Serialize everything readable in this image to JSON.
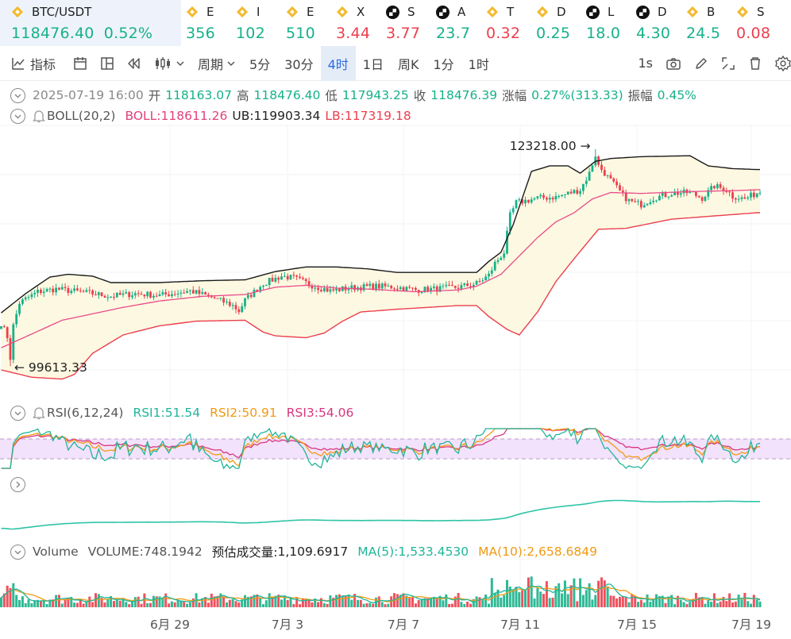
{
  "ticker": {
    "main": {
      "symbol": "BTC/USDT",
      "price": "118476.40",
      "change": "0.52%"
    },
    "items": [
      {
        "icon": "binance-coin-icon",
        "label": "E",
        "value": "356",
        "dir": "up"
      },
      {
        "icon": "binance-coin-icon",
        "label": "I",
        "value": "102",
        "dir": "up"
      },
      {
        "icon": "binance-coin-icon",
        "label": "E",
        "value": "510",
        "dir": "up"
      },
      {
        "icon": "binance-coin-icon",
        "label": "X",
        "value": "3.44",
        "dir": "dn"
      },
      {
        "icon": "okx-icon",
        "label": "S",
        "value": "3.77",
        "dir": "dn"
      },
      {
        "icon": "okx-icon",
        "label": "A",
        "value": "23.7",
        "dir": "up"
      },
      {
        "icon": "binance-coin-icon",
        "label": "T",
        "value": "0.32",
        "dir": "dn"
      },
      {
        "icon": "binance-coin-icon",
        "label": "D",
        "value": "0.25",
        "dir": "up"
      },
      {
        "icon": "okx-icon",
        "label": "L",
        "value": "18.0",
        "dir": "up"
      },
      {
        "icon": "okx-icon",
        "label": "D",
        "value": "4.30",
        "dir": "up"
      },
      {
        "icon": "binance-coin-icon",
        "label": "B",
        "value": "24.5",
        "dir": "up"
      },
      {
        "icon": "binance-coin-icon",
        "label": "S",
        "value": "0.08",
        "dir": "dn"
      }
    ]
  },
  "toolbar": {
    "indicator_label": "指标",
    "period_label": "周期",
    "intervals": [
      "5分",
      "30分",
      "4时",
      "1日",
      "周K",
      "1分",
      "1时"
    ],
    "active_interval": "4时",
    "speed_label": "1s"
  },
  "ohlc": {
    "datetime": "2025-07-19 16:00",
    "open_label": "开",
    "open": "118163.07",
    "high_label": "高",
    "high": "118476.40",
    "low_label": "低",
    "low": "117943.25",
    "close_label": "收",
    "close": "118476.39",
    "change_label": "涨幅",
    "change": "0.27%(313.33)",
    "amplitude_label": "振幅",
    "amplitude": "0.45%"
  },
  "boll": {
    "name": "BOLL(20,2)",
    "mid_label": "BOLL:",
    "mid": "118611.26",
    "ub_label": "UB:",
    "ub": "119903.34",
    "lb_label": "LB:",
    "lb": "117319.18"
  },
  "rsi": {
    "name": "RSI(6,12,24)",
    "rsi1_label": "RSI1:",
    "rsi1": "51.54",
    "rsi2_label": "RSI2:",
    "rsi2": "50.91",
    "rsi3_label": "RSI3:",
    "rsi3": "54.06"
  },
  "volume": {
    "label": "Volume",
    "vol_label": "VOLUME:",
    "vol": "748.1942",
    "est_label": "预估成交量:",
    "est": "1,109.6917",
    "ma5_label": "MA(5):",
    "ma5": "1,533.4530",
    "ma10_label": "MA(10):",
    "ma10": "2,658.6849"
  },
  "colors": {
    "up": "#17b18a",
    "down": "#ec3f4d",
    "upper_band": "#1a1a1a",
    "middle_band": "#e84b8a",
    "lower_band": "#ea3f4e",
    "band_fill": "#fdf8e1",
    "rsi1": "#20b59a",
    "rsi2": "#f19a13",
    "rsi3": "#d8377f",
    "rsi_zone": "#f3e2fb",
    "secondary_line": "#2ec4a6",
    "ma5": "#20b59a",
    "ma10": "#f19a13"
  },
  "chart_data": {
    "type": "candlestick",
    "x_ticks": [
      "6月 29",
      "7月 3",
      "7月 7",
      "7月 11",
      "7月 15",
      "7月 19"
    ],
    "annotations": {
      "high": "123218.00",
      "low": "99613.33"
    },
    "y_range": [
      96000,
      125800
    ],
    "close_anchors": [
      [
        0,
        104300
      ],
      [
        2,
        102800
      ],
      [
        3,
        100500
      ],
      [
        4,
        104000
      ],
      [
        6,
        106500
      ],
      [
        12,
        107700
      ],
      [
        18,
        108000
      ],
      [
        28,
        107600
      ],
      [
        36,
        107200
      ],
      [
        44,
        107500
      ],
      [
        52,
        107300
      ],
      [
        62,
        107800
      ],
      [
        70,
        107000
      ],
      [
        76,
        106200
      ],
      [
        78,
        105600
      ],
      [
        80,
        106800
      ],
      [
        86,
        108600
      ],
      [
        92,
        109400
      ],
      [
        96,
        109200
      ],
      [
        102,
        108400
      ],
      [
        108,
        107800
      ],
      [
        114,
        108100
      ],
      [
        122,
        108300
      ],
      [
        130,
        108200
      ],
      [
        136,
        107900
      ],
      [
        142,
        108000
      ],
      [
        150,
        108200
      ],
      [
        156,
        108600
      ],
      [
        160,
        109500
      ],
      [
        162,
        110800
      ],
      [
        165,
        112000
      ],
      [
        167,
        116000
      ],
      [
        169,
        117400
      ],
      [
        172,
        117600
      ],
      [
        176,
        117900
      ],
      [
        182,
        118000
      ],
      [
        186,
        118400
      ],
      [
        190,
        118800
      ],
      [
        193,
        120600
      ],
      [
        195,
        122600
      ],
      [
        196,
        121400
      ],
      [
        200,
        119800
      ],
      [
        204,
        118200
      ],
      [
        206,
        117600
      ],
      [
        210,
        117200
      ],
      [
        214,
        117900
      ],
      [
        220,
        118400
      ],
      [
        226,
        118500
      ],
      [
        230,
        117900
      ],
      [
        234,
        119200
      ],
      [
        238,
        118800
      ],
      [
        240,
        118100
      ],
      [
        244,
        117800
      ],
      [
        248,
        118476
      ]
    ],
    "upper_anchors": [
      [
        0,
        105400
      ],
      [
        8,
        107500
      ],
      [
        16,
        109300
      ],
      [
        22,
        109600
      ],
      [
        30,
        109400
      ],
      [
        36,
        108700
      ],
      [
        52,
        108700
      ],
      [
        66,
        108900
      ],
      [
        80,
        109000
      ],
      [
        90,
        109900
      ],
      [
        100,
        110400
      ],
      [
        110,
        110400
      ],
      [
        120,
        110200
      ],
      [
        130,
        109800
      ],
      [
        146,
        109800
      ],
      [
        156,
        109800
      ],
      [
        160,
        111000
      ],
      [
        164,
        112000
      ],
      [
        168,
        115000
      ],
      [
        174,
        120800
      ],
      [
        180,
        121400
      ],
      [
        186,
        121400
      ],
      [
        190,
        120600
      ],
      [
        195,
        121900
      ],
      [
        200,
        122200
      ],
      [
        210,
        122400
      ],
      [
        226,
        122500
      ],
      [
        232,
        121400
      ],
      [
        240,
        121100
      ],
      [
        248,
        121000
      ]
    ],
    "middle_anchors": [
      [
        0,
        101600
      ],
      [
        10,
        103100
      ],
      [
        20,
        104600
      ],
      [
        30,
        105300
      ],
      [
        40,
        106000
      ],
      [
        52,
        106700
      ],
      [
        66,
        107200
      ],
      [
        80,
        107400
      ],
      [
        90,
        108200
      ],
      [
        100,
        108400
      ],
      [
        110,
        108100
      ],
      [
        120,
        108000
      ],
      [
        136,
        107700
      ],
      [
        150,
        107900
      ],
      [
        156,
        108300
      ],
      [
        164,
        109600
      ],
      [
        170,
        111600
      ],
      [
        176,
        113600
      ],
      [
        182,
        115300
      ],
      [
        188,
        116300
      ],
      [
        194,
        117800
      ],
      [
        200,
        118500
      ],
      [
        210,
        118400
      ],
      [
        226,
        118600
      ],
      [
        240,
        118700
      ],
      [
        248,
        118800
      ]
    ],
    "lower_anchors": [
      [
        0,
        99200
      ],
      [
        10,
        98400
      ],
      [
        20,
        98200
      ],
      [
        24,
        98700
      ],
      [
        30,
        101000
      ],
      [
        40,
        103000
      ],
      [
        52,
        104000
      ],
      [
        64,
        104500
      ],
      [
        80,
        104600
      ],
      [
        86,
        103300
      ],
      [
        90,
        102900
      ],
      [
        100,
        102700
      ],
      [
        106,
        103200
      ],
      [
        112,
        104500
      ],
      [
        118,
        105500
      ],
      [
        130,
        105800
      ],
      [
        150,
        106200
      ],
      [
        156,
        106200
      ],
      [
        160,
        105000
      ],
      [
        166,
        103600
      ],
      [
        170,
        103000
      ],
      [
        176,
        105500
      ],
      [
        182,
        108800
      ],
      [
        188,
        111300
      ],
      [
        196,
        114500
      ],
      [
        205,
        114600
      ],
      [
        220,
        115600
      ],
      [
        236,
        116000
      ],
      [
        248,
        116300
      ]
    ],
    "rsi": {
      "rsi1": 51.54,
      "rsi2": 50.91,
      "rsi3": 54.06
    },
    "volume": {
      "last": 748.1942,
      "estimated": 1109.6917,
      "ma5": 1533.453,
      "ma10": 2658.6849
    }
  }
}
